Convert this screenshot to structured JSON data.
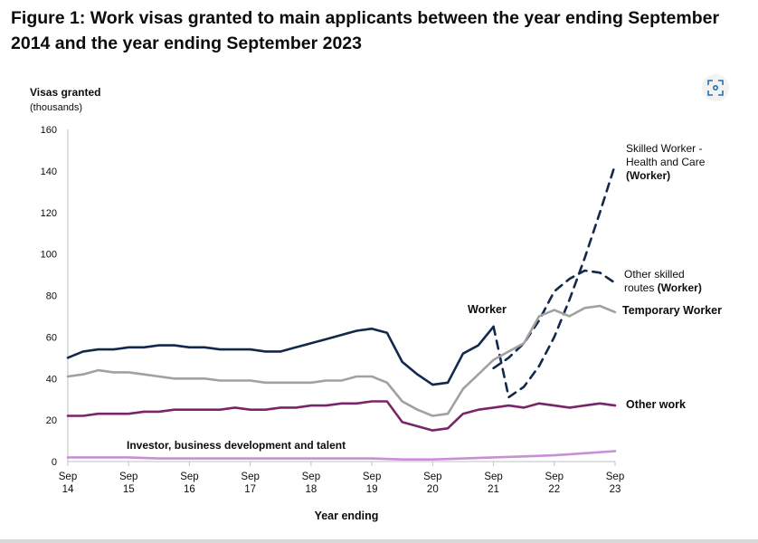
{
  "figure": {
    "title": "Figure 1: Work visas granted to main applicants between the year ending September 2014 and the year ending September 2023"
  },
  "expand_icon": "expand-icon",
  "chart_data": {
    "type": "line",
    "ylabel_lines": [
      "Visas granted",
      "(thousands)"
    ],
    "xlabel": "Year ending",
    "ylim": [
      0,
      160
    ],
    "yticks": [
      0,
      20,
      40,
      60,
      80,
      100,
      120,
      140,
      160
    ],
    "xlim": [
      0,
      36
    ],
    "xticks": [
      {
        "x": 0,
        "line1": "Sep",
        "line2": "14"
      },
      {
        "x": 4,
        "line1": "Sep",
        "line2": "15"
      },
      {
        "x": 8,
        "line1": "Sep",
        "line2": "16"
      },
      {
        "x": 12,
        "line1": "Sep",
        "line2": "17"
      },
      {
        "x": 16,
        "line1": "Sep",
        "line2": "18"
      },
      {
        "x": 20,
        "line1": "Sep",
        "line2": "19"
      },
      {
        "x": 24,
        "line1": "Sep",
        "line2": "20"
      },
      {
        "x": 28,
        "line1": "Sep",
        "line2": "21"
      },
      {
        "x": 32,
        "line1": "Sep",
        "line2": "22"
      },
      {
        "x": 36,
        "line1": "Sep",
        "line2": "23"
      }
    ],
    "grid": false,
    "series": [
      {
        "name": "Worker",
        "color": "#12294b",
        "dash": false,
        "x": [
          0,
          1,
          2,
          3,
          4,
          5,
          6,
          7,
          8,
          9,
          10,
          11,
          12,
          13,
          14,
          15,
          16,
          17,
          18,
          19,
          20,
          21,
          22,
          23,
          24,
          25,
          26,
          27,
          28
        ],
        "values": [
          50,
          53,
          54,
          54,
          55,
          55,
          56,
          56,
          55,
          55,
          54,
          54,
          54,
          53,
          53,
          55,
          57,
          59,
          61,
          63,
          64,
          62,
          48,
          42,
          37,
          38,
          52,
          56,
          65
        ]
      },
      {
        "name": "Skilled Worker - Health and Care (Worker)",
        "label_lines": [
          "Skilled Worker -",
          "Health and Care",
          "(Worker)"
        ],
        "label_bold_lines": [
          2
        ],
        "color": "#12294b",
        "dash": true,
        "x": [
          28,
          29,
          30,
          31,
          32,
          33,
          34,
          35,
          36
        ],
        "values": [
          65,
          31,
          36,
          46,
          60,
          78,
          98,
          120,
          143
        ]
      },
      {
        "name": "Other skilled routes (Worker)",
        "label_lines": [
          "Other skilled",
          "routes (Worker)"
        ],
        "label_bold_words": [
          "(Worker)"
        ],
        "color": "#12294b",
        "dash": true,
        "x": [
          28,
          29,
          30,
          31,
          32,
          33,
          34,
          35,
          36
        ],
        "values": [
          45,
          50,
          57,
          68,
          82,
          88,
          92,
          91,
          86
        ]
      },
      {
        "name": "Temporary Worker",
        "color": "#a1a1a1",
        "dash": false,
        "x": [
          0,
          1,
          2,
          3,
          4,
          5,
          6,
          7,
          8,
          9,
          10,
          11,
          12,
          13,
          14,
          15,
          16,
          17,
          18,
          19,
          20,
          21,
          22,
          23,
          24,
          25,
          26,
          27,
          28,
          29,
          30,
          31,
          32,
          33,
          34,
          35,
          36
        ],
        "values": [
          41,
          42,
          44,
          43,
          43,
          42,
          41,
          40,
          40,
          40,
          39,
          39,
          39,
          38,
          38,
          38,
          38,
          39,
          39,
          41,
          41,
          38,
          29,
          25,
          22,
          23,
          35,
          42,
          49,
          53,
          57,
          70,
          73,
          70,
          74,
          75,
          72
        ]
      },
      {
        "name": "Other work",
        "color": "#7a2469",
        "dash": false,
        "x": [
          0,
          1,
          2,
          3,
          4,
          5,
          6,
          7,
          8,
          9,
          10,
          11,
          12,
          13,
          14,
          15,
          16,
          17,
          18,
          19,
          20,
          21,
          22,
          23,
          24,
          25,
          26,
          27,
          28,
          29,
          30,
          31,
          32,
          33,
          34,
          35,
          36
        ],
        "values": [
          22,
          22,
          23,
          23,
          23,
          24,
          24,
          25,
          25,
          25,
          25,
          26,
          25,
          25,
          26,
          26,
          27,
          27,
          28,
          28,
          29,
          29,
          19,
          17,
          15,
          16,
          23,
          25,
          26,
          27,
          26,
          28,
          27,
          26,
          27,
          28,
          27
        ]
      },
      {
        "name": "Investor, business development and talent",
        "color": "#c98fd6",
        "dash": false,
        "x": [
          0,
          2,
          4,
          6,
          8,
          10,
          12,
          14,
          16,
          18,
          20,
          22,
          24,
          26,
          28,
          30,
          32,
          34,
          36
        ],
        "values": [
          2,
          2,
          2,
          1.5,
          1.5,
          1.5,
          1.5,
          1.5,
          1.5,
          1.5,
          1.5,
          1,
          1,
          1.5,
          2,
          2.5,
          3,
          4,
          5
        ]
      }
    ],
    "annotations": {
      "worker": "Worker",
      "temporary_worker": "Temporary Worker",
      "other_work": "Other work",
      "investor": "Investor, business development and talent"
    }
  }
}
